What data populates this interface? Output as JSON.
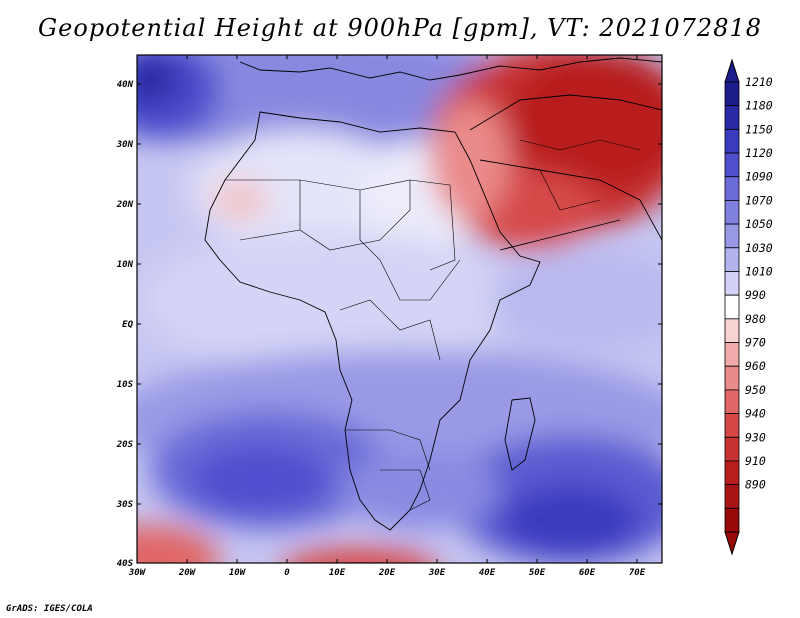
{
  "title": "Geopotential Height at 900hPa [gpm], VT: 2021072818",
  "credit": "GrADS: IGES/COLA",
  "map": {
    "lon_ticks": [
      "30W",
      "20W",
      "10W",
      "0",
      "10E",
      "20E",
      "30E",
      "40E",
      "50E",
      "60E",
      "70E"
    ],
    "lat_ticks": [
      "40N",
      "30N",
      "20N",
      "10N",
      "EQ",
      "10S",
      "20S",
      "30S",
      "40S"
    ]
  },
  "colorbar": {
    "labels": [
      "1210",
      "1180",
      "1150",
      "1120",
      "1090",
      "1070",
      "1050",
      "1030",
      "1010",
      "990",
      "980",
      "970",
      "960",
      "950",
      "940",
      "930",
      "910",
      "890"
    ],
    "colors": [
      "#1c1c8a",
      "#2a2aa5",
      "#3b3bc0",
      "#5050cf",
      "#6a6ad8",
      "#8080de",
      "#9898e6",
      "#b3b3ee",
      "#d2d2f6",
      "#ffffff",
      "#f6d2d2",
      "#f0aaaa",
      "#ea8a8a",
      "#e06666",
      "#d64848",
      "#c83232",
      "#b81e1e",
      "#a81414",
      "#980a0a"
    ]
  }
}
